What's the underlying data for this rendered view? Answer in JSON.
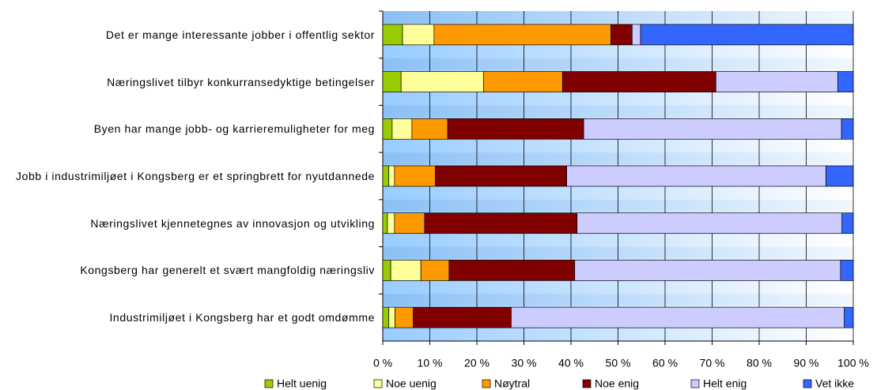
{
  "chart_data": {
    "type": "stacked_barh",
    "categories": [
      "Det er mange interessante jobber i offentlig sektor",
      "Næringslivet tilbyr konkurransedyktige betingelser",
      "Byen har mange jobb- og karrieremuligheter for meg",
      "Jobb i industrimiljøet i Kongsberg er et springbrett for nyutdannede",
      "Næringslivet kjennetegnes av innovasjon og utvikling",
      "Kongsberg har generelt et svært mangfoldig næringsliv",
      "Industrimiljøet i Kongsberg har et godt omdømme"
    ],
    "series": [
      {
        "name": "Helt uenig",
        "color": "#99cc00",
        "values": [
          4.2,
          3.9,
          2.0,
          1.3,
          1.0,
          1.7,
          1.3
        ]
      },
      {
        "name": "Noe uenig",
        "color": "#ffff99",
        "values": [
          6.7,
          17.5,
          4.2,
          1.2,
          1.5,
          6.4,
          1.3
        ]
      },
      {
        "name": "Nøytral",
        "color": "#ff9900",
        "values": [
          37.6,
          16.8,
          7.6,
          8.7,
          6.4,
          6.0,
          3.9
        ]
      },
      {
        "name": "Noe enig",
        "color": "#800000",
        "values": [
          4.5,
          32.6,
          28.9,
          27.9,
          32.4,
          26.7,
          20.8
        ]
      },
      {
        "name": "Helt enig",
        "color": "#ccccff",
        "values": [
          1.8,
          25.9,
          54.8,
          55.1,
          56.3,
          56.5,
          70.8
        ]
      },
      {
        "name": "Vet ikke",
        "color": "#3366ff",
        "values": [
          45.2,
          3.3,
          2.5,
          5.8,
          2.4,
          2.7,
          1.9
        ]
      }
    ],
    "xlim": [
      0,
      100
    ],
    "xticks": [
      {
        "value": 0,
        "label": "0 %"
      },
      {
        "value": 10,
        "label": "10 %"
      },
      {
        "value": 20,
        "label": "20 %"
      },
      {
        "value": 30,
        "label": "30 %"
      },
      {
        "value": 40,
        "label": "40 %"
      },
      {
        "value": 50,
        "label": "50 %"
      },
      {
        "value": 60,
        "label": "60 %"
      },
      {
        "value": 70,
        "label": "70 %"
      },
      {
        "value": 80,
        "label": "80 %"
      },
      {
        "value": 90,
        "label": "90 %"
      },
      {
        "value": 100,
        "label": "100 %"
      }
    ],
    "grid": true,
    "legend": "bottom"
  }
}
